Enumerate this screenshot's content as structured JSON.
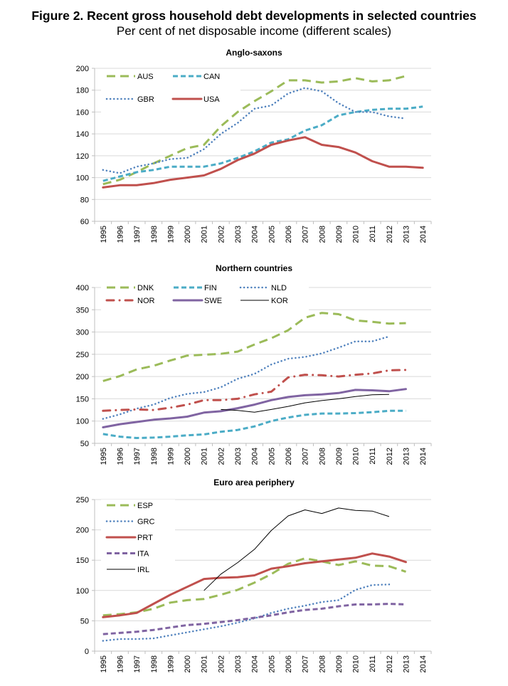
{
  "figure": {
    "title": "Figure 2. Recent gross household debt developments in selected countries",
    "subtitle": "Per cent of net disposable income (different scales)"
  },
  "chart_data": [
    {
      "type": "line",
      "title": "Anglo-saxons",
      "xlabel": "",
      "ylabel": "",
      "categories": [
        "1995",
        "1996",
        "1997",
        "1998",
        "1999",
        "2000",
        "2001",
        "2002",
        "2003",
        "2004",
        "2005",
        "2006",
        "2007",
        "2008",
        "2009",
        "2010",
        "2011",
        "2012",
        "2013",
        "2014"
      ],
      "ylim": [
        60,
        200
      ],
      "yticks": [
        60,
        80,
        100,
        120,
        140,
        160,
        180,
        200
      ],
      "grid": true,
      "legend": "top-left",
      "series": [
        {
          "name": "AUS",
          "color": "#9BBB59",
          "style": "long-dash",
          "values": [
            94,
            98,
            105,
            113,
            120,
            127,
            130,
            147,
            160,
            170,
            179,
            189,
            189,
            187,
            188,
            191,
            188,
            189,
            193,
            null
          ]
        },
        {
          "name": "CAN",
          "color": "#4BACC6",
          "style": "dash",
          "values": [
            97,
            101,
            105,
            107,
            110,
            110,
            110,
            113,
            118,
            124,
            132,
            135,
            143,
            148,
            157,
            160,
            162,
            163,
            163,
            165
          ]
        },
        {
          "name": "GBR",
          "color": "#4F81BD",
          "style": "dot",
          "values": [
            107,
            104,
            110,
            113,
            117,
            118,
            126,
            140,
            150,
            163,
            166,
            177,
            182,
            179,
            168,
            160,
            160,
            156,
            154,
            null
          ]
        },
        {
          "name": "USA",
          "color": "#C0504D",
          "style": "solid",
          "values": [
            91,
            93,
            93,
            95,
            98,
            100,
            102,
            108,
            116,
            122,
            130,
            134,
            137,
            130,
            128,
            123,
            115,
            110,
            110,
            109
          ]
        }
      ]
    },
    {
      "type": "line",
      "title": "Northern countries",
      "xlabel": "",
      "ylabel": "",
      "categories": [
        "1995",
        "1996",
        "1997",
        "1998",
        "1999",
        "2000",
        "2001",
        "2002",
        "2003",
        "2004",
        "2005",
        "2006",
        "2007",
        "2008",
        "2009",
        "2010",
        "2011",
        "2012",
        "2013",
        "2014"
      ],
      "ylim": [
        50,
        400
      ],
      "yticks": [
        50,
        100,
        150,
        200,
        250,
        300,
        350,
        400
      ],
      "grid": true,
      "legend": "top-left",
      "series": [
        {
          "name": "DNK",
          "color": "#9BBB59",
          "style": "long-dash",
          "values": [
            190,
            201,
            216,
            224,
            236,
            247,
            249,
            251,
            256,
            272,
            286,
            304,
            332,
            343,
            340,
            326,
            323,
            319,
            320,
            null
          ]
        },
        {
          "name": "FIN",
          "color": "#4BACC6",
          "style": "dash",
          "values": [
            71,
            65,
            62,
            63,
            65,
            68,
            70,
            76,
            80,
            88,
            100,
            108,
            114,
            117,
            117,
            118,
            120,
            123,
            123,
            null
          ]
        },
        {
          "name": "NLD",
          "color": "#4F81BD",
          "style": "dot",
          "values": [
            105,
            115,
            128,
            137,
            152,
            161,
            165,
            176,
            195,
            206,
            227,
            240,
            244,
            252,
            265,
            279,
            279,
            290,
            null,
            null
          ]
        },
        {
          "name": "NOR",
          "color": "#C0504D",
          "style": "dash-dot",
          "values": [
            123,
            125,
            126,
            125,
            130,
            137,
            147,
            147,
            150,
            160,
            166,
            198,
            204,
            203,
            200,
            204,
            207,
            214,
            215,
            null
          ]
        },
        {
          "name": "SWE",
          "color": "#8064A2",
          "style": "solid",
          "values": [
            86,
            93,
            98,
            103,
            106,
            110,
            119,
            122,
            129,
            137,
            147,
            154,
            158,
            160,
            163,
            170,
            169,
            167,
            172,
            null
          ]
        },
        {
          "name": "KOR",
          "color": "#000000",
          "style": "thin",
          "values": [
            null,
            null,
            null,
            null,
            null,
            null,
            null,
            126,
            124,
            120,
            126,
            133,
            141,
            146,
            150,
            155,
            159,
            160,
            null,
            null
          ]
        }
      ]
    },
    {
      "type": "line",
      "title": "Euro area periphery",
      "xlabel": "",
      "ylabel": "",
      "categories": [
        "1995",
        "1996",
        "1997",
        "1998",
        "1999",
        "2000",
        "2001",
        "2002",
        "2003",
        "2004",
        "2005",
        "2006",
        "2007",
        "2008",
        "2009",
        "2010",
        "2011",
        "2012",
        "2013",
        "2014"
      ],
      "ylim": [
        0,
        250
      ],
      "yticks": [
        0,
        50,
        100,
        150,
        200,
        250
      ],
      "grid": true,
      "legend": "top-left",
      "series": [
        {
          "name": "ESP",
          "color": "#9BBB59",
          "style": "long-dash",
          "values": [
            59,
            61,
            64,
            70,
            80,
            84,
            86,
            93,
            101,
            113,
            127,
            144,
            153,
            148,
            142,
            148,
            141,
            140,
            131,
            null
          ]
        },
        {
          "name": "GRC",
          "color": "#4F81BD",
          "style": "dot",
          "values": [
            17,
            20,
            20,
            21,
            26,
            31,
            36,
            41,
            47,
            54,
            63,
            70,
            75,
            81,
            84,
            101,
            109,
            110,
            null,
            null
          ]
        },
        {
          "name": "PRT",
          "color": "#C0504D",
          "style": "solid",
          "values": [
            56,
            59,
            63,
            78,
            93,
            106,
            119,
            121,
            122,
            125,
            136,
            140,
            145,
            148,
            151,
            154,
            161,
            156,
            147,
            null
          ]
        },
        {
          "name": "ITA",
          "color": "#8064A2",
          "style": "dash",
          "values": [
            28,
            30,
            32,
            35,
            39,
            43,
            45,
            48,
            51,
            55,
            59,
            64,
            68,
            70,
            74,
            77,
            77,
            78,
            77,
            null
          ]
        },
        {
          "name": "IRL",
          "color": "#000000",
          "style": "thin",
          "values": [
            null,
            null,
            null,
            null,
            null,
            null,
            100,
            127,
            146,
            168,
            199,
            223,
            233,
            227,
            236,
            232,
            231,
            222,
            null,
            null
          ]
        }
      ]
    }
  ]
}
